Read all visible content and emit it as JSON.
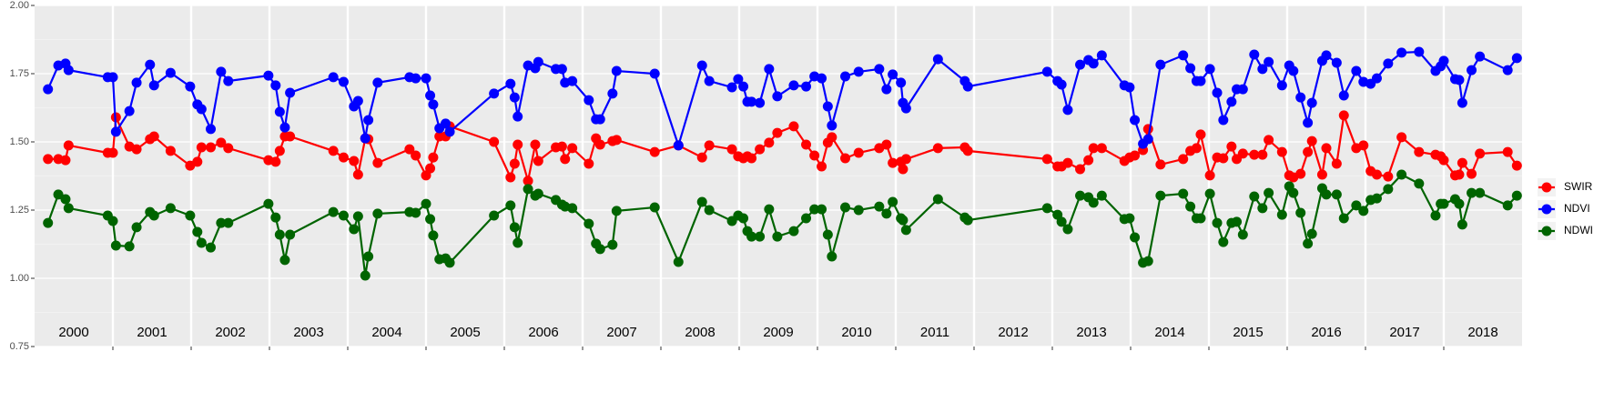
{
  "chart_data": {
    "type": "line",
    "xlim": [
      2000,
      2019
    ],
    "xticks": [
      2001,
      2002,
      2003,
      2004,
      2005,
      2006,
      2007,
      2008,
      2009,
      2010,
      2011,
      2012,
      2013,
      2014,
      2015,
      2016,
      2017,
      2018
    ],
    "year_labels": [
      "2000",
      "2001",
      "2002",
      "2003",
      "2004",
      "2005",
      "2006",
      "2007",
      "2008",
      "2009",
      "2010",
      "2011",
      "2012",
      "2013",
      "2014",
      "2015",
      "2016",
      "2017",
      "2018"
    ],
    "ylim": [
      0.75,
      2.0
    ],
    "yticks": [
      0.75,
      {
        "value": 1.0,
        "label": "1.00"
      },
      1.25,
      {
        "value": 1.5,
        "label": "1.50"
      },
      1.75,
      {
        "value": 2.0,
        "label": "2.00"
      }
    ],
    "grid": true,
    "legend": "right",
    "x": [
      2000.171,
      2000.303,
      2000.395,
      2000.434,
      2000.934,
      2001.0,
      2001.039,
      2001.211,
      2001.303,
      2001.474,
      2001.526,
      2001.737,
      2001.987,
      2002.079,
      2002.132,
      2002.25,
      2002.382,
      2002.474,
      2002.987,
      2003.079,
      2003.132,
      2003.197,
      2003.263,
      2003.816,
      2003.947,
      2004.079,
      2004.132,
      2004.224,
      2004.263,
      2004.382,
      2004.789,
      2004.868,
      2005.0,
      2005.053,
      2005.092,
      2005.171,
      2005.25,
      2005.303,
      2005.868,
      2006.079,
      2006.132,
      2006.171,
      2006.303,
      2006.395,
      2006.434,
      2006.658,
      2006.737,
      2006.776,
      2006.868,
      2007.079,
      2007.171,
      2007.224,
      2007.382,
      2007.434,
      2007.921,
      2008.224,
      2008.526,
      2008.618,
      2008.908,
      2008.987,
      2009.053,
      2009.105,
      2009.158,
      2009.263,
      2009.382,
      2009.487,
      2009.697,
      2009.855,
      2009.961,
      2010.053,
      2010.132,
      2010.184,
      2010.355,
      2010.526,
      2010.789,
      2010.882,
      2010.961,
      2011.066,
      2011.092,
      2011.132,
      2011.539,
      2011.882,
      2011.921,
      2012.934,
      2013.066,
      2013.118,
      2013.197,
      2013.355,
      2013.461,
      2013.526,
      2013.632,
      2013.921,
      2013.987,
      2014.053,
      2014.158,
      2014.224,
      2014.382,
      2014.671,
      2014.763,
      2014.842,
      2014.895,
      2015.013,
      2015.105,
      2015.184,
      2015.289,
      2015.355,
      2015.434,
      2015.579,
      2015.684,
      2015.763,
      2015.934,
      2016.026,
      2016.079,
      2016.171,
      2016.263,
      2016.316,
      2016.447,
      2016.5,
      2016.632,
      2016.724,
      2016.882,
      2016.974,
      2017.066,
      2017.145,
      2017.289,
      2017.461,
      2017.684,
      2017.895,
      2017.961,
      2018.0,
      2018.145,
      2018.197,
      2018.237,
      2018.355,
      2018.461,
      2018.816,
      2018.934
    ],
    "series": [
      {
        "name": "SWIR",
        "color": "#ff0000",
        "values": [
          1.437,
          1.437,
          1.433,
          1.487,
          1.46,
          1.46,
          1.59,
          1.483,
          1.473,
          1.51,
          1.52,
          1.467,
          1.413,
          1.427,
          1.48,
          1.48,
          1.497,
          1.477,
          1.433,
          1.427,
          1.467,
          1.52,
          1.52,
          1.467,
          1.443,
          1.43,
          1.38,
          1.513,
          1.51,
          1.423,
          1.473,
          1.45,
          1.377,
          1.403,
          1.443,
          1.52,
          1.52,
          1.557,
          1.5,
          1.37,
          1.42,
          1.49,
          1.357,
          1.49,
          1.43,
          1.48,
          1.483,
          1.437,
          1.477,
          1.42,
          1.513,
          1.49,
          1.503,
          1.507,
          1.463,
          1.487,
          1.443,
          1.487,
          1.473,
          1.447,
          1.44,
          1.447,
          1.44,
          1.473,
          1.497,
          1.533,
          1.557,
          1.49,
          1.45,
          1.41,
          1.497,
          1.517,
          1.44,
          1.46,
          1.477,
          1.49,
          1.423,
          1.427,
          1.4,
          1.437,
          1.477,
          1.48,
          1.467,
          1.437,
          1.41,
          1.41,
          1.423,
          1.4,
          1.433,
          1.477,
          1.477,
          1.43,
          1.443,
          1.45,
          1.47,
          1.547,
          1.417,
          1.437,
          1.467,
          1.477,
          1.527,
          1.377,
          1.443,
          1.44,
          1.483,
          1.437,
          1.457,
          1.453,
          1.453,
          1.507,
          1.463,
          1.377,
          1.37,
          1.383,
          1.463,
          1.503,
          1.38,
          1.477,
          1.42,
          1.597,
          1.477,
          1.487,
          1.393,
          1.38,
          1.373,
          1.517,
          1.463,
          1.453,
          1.447,
          1.433,
          1.377,
          1.38,
          1.423,
          1.383,
          1.457,
          1.463,
          1.413
        ]
      },
      {
        "name": "NDVI",
        "color": "#0000ff",
        "values": [
          1.693,
          1.78,
          1.787,
          1.763,
          1.737,
          1.737,
          1.537,
          1.613,
          1.717,
          1.783,
          1.707,
          1.753,
          1.703,
          1.637,
          1.62,
          1.547,
          1.757,
          1.723,
          1.743,
          1.707,
          1.61,
          1.553,
          1.68,
          1.737,
          1.72,
          1.63,
          1.65,
          1.513,
          1.58,
          1.717,
          1.737,
          1.733,
          1.733,
          1.67,
          1.637,
          1.55,
          1.567,
          1.537,
          1.677,
          1.713,
          1.663,
          1.593,
          1.78,
          1.77,
          1.793,
          1.767,
          1.767,
          1.717,
          1.723,
          1.653,
          1.583,
          1.583,
          1.677,
          1.76,
          1.75,
          1.487,
          1.78,
          1.723,
          1.7,
          1.73,
          1.703,
          1.647,
          1.647,
          1.643,
          1.767,
          1.667,
          1.707,
          1.703,
          1.74,
          1.733,
          1.63,
          1.56,
          1.74,
          1.757,
          1.767,
          1.693,
          1.747,
          1.717,
          1.643,
          1.623,
          1.803,
          1.723,
          1.703,
          1.757,
          1.723,
          1.71,
          1.617,
          1.783,
          1.8,
          1.787,
          1.817,
          1.707,
          1.7,
          1.58,
          1.493,
          1.51,
          1.783,
          1.817,
          1.77,
          1.723,
          1.723,
          1.767,
          1.68,
          1.58,
          1.647,
          1.693,
          1.693,
          1.82,
          1.767,
          1.793,
          1.707,
          1.78,
          1.76,
          1.663,
          1.57,
          1.643,
          1.797,
          1.817,
          1.79,
          1.67,
          1.76,
          1.72,
          1.713,
          1.733,
          1.787,
          1.827,
          1.83,
          1.76,
          1.777,
          1.797,
          1.73,
          1.727,
          1.643,
          1.763,
          1.813,
          1.763,
          1.807
        ]
      },
      {
        "name": "NDWI",
        "color": "#006400",
        "values": [
          1.203,
          1.307,
          1.29,
          1.257,
          1.23,
          1.21,
          1.12,
          1.117,
          1.187,
          1.243,
          1.23,
          1.257,
          1.23,
          1.17,
          1.13,
          1.113,
          1.203,
          1.203,
          1.273,
          1.223,
          1.16,
          1.067,
          1.16,
          1.243,
          1.23,
          1.18,
          1.227,
          1.01,
          1.08,
          1.237,
          1.243,
          1.24,
          1.273,
          1.217,
          1.157,
          1.07,
          1.073,
          1.057,
          1.23,
          1.267,
          1.187,
          1.13,
          1.327,
          1.303,
          1.31,
          1.287,
          1.27,
          1.263,
          1.257,
          1.2,
          1.127,
          1.107,
          1.123,
          1.247,
          1.26,
          1.06,
          1.28,
          1.25,
          1.21,
          1.23,
          1.22,
          1.173,
          1.153,
          1.153,
          1.253,
          1.153,
          1.173,
          1.22,
          1.253,
          1.253,
          1.16,
          1.08,
          1.26,
          1.25,
          1.263,
          1.237,
          1.28,
          1.22,
          1.213,
          1.177,
          1.29,
          1.223,
          1.213,
          1.257,
          1.233,
          1.207,
          1.18,
          1.303,
          1.297,
          1.277,
          1.303,
          1.217,
          1.22,
          1.15,
          1.057,
          1.063,
          1.303,
          1.31,
          1.263,
          1.22,
          1.22,
          1.31,
          1.203,
          1.133,
          1.203,
          1.207,
          1.16,
          1.3,
          1.257,
          1.313,
          1.233,
          1.337,
          1.313,
          1.24,
          1.127,
          1.163,
          1.33,
          1.307,
          1.307,
          1.22,
          1.267,
          1.247,
          1.287,
          1.293,
          1.327,
          1.38,
          1.347,
          1.23,
          1.273,
          1.273,
          1.29,
          1.273,
          1.197,
          1.313,
          1.313,
          1.267,
          1.303
        ]
      }
    ]
  }
}
